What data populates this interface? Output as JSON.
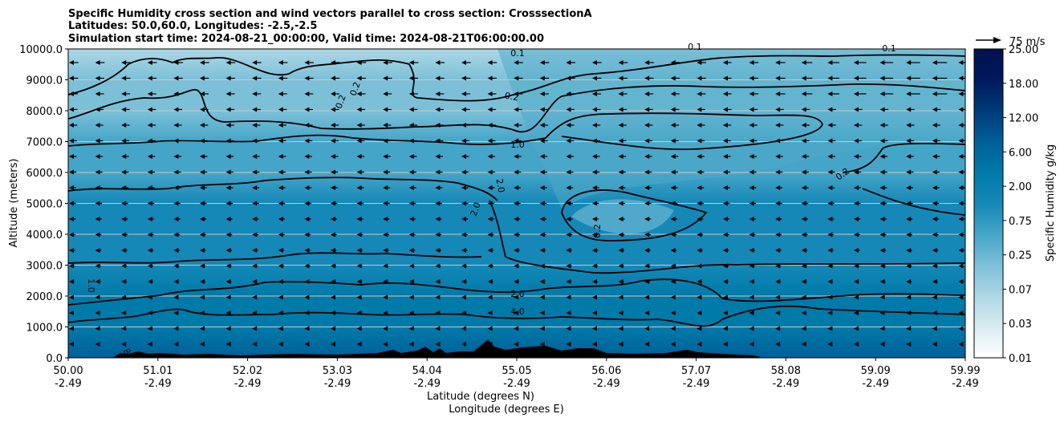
{
  "chart_data": {
    "type": "heatmap",
    "title_lines": [
      "Specific Humidity cross section and wind vectors parallel to cross section: CrosssectionA",
      "Latitudes: 50.0,60.0, Longitudes: -2.5,-2.5",
      "Simulation start time: 2024-08-21_00:00:00, Valid time: 2024-08-21T06:00:00.00"
    ],
    "xlabel_lat": "Latitude (degrees N)",
    "xlabel_lon": "Longitude (degrees E)",
    "ylabel": "Altitude (meters)",
    "x_ticks_lat": [
      "50.00",
      "51.01",
      "52.02",
      "53.03",
      "54.04",
      "55.05",
      "56.06",
      "57.07",
      "58.08",
      "59.09",
      "59.99"
    ],
    "x_ticks_lon": [
      "-2.49",
      "-2.49",
      "-2.49",
      "-2.49",
      "-2.49",
      "-2.49",
      "-2.49",
      "-2.49",
      "-2.49",
      "-2.49",
      "-2.49"
    ],
    "y_ticks": [
      "0.0",
      "1000.0",
      "2000.0",
      "3000.0",
      "4000.0",
      "5000.0",
      "6000.0",
      "7000.0",
      "8000.0",
      "9000.0",
      "10000.0"
    ],
    "ylim": [
      0,
      10000
    ],
    "xlim": [
      50.0,
      59.99
    ],
    "grid": "horizontal",
    "colorbar": {
      "label": "Specific Humidity g/kg",
      "tick_labels": [
        "0.01",
        "0.03",
        "0.07",
        "0.25",
        "0.75",
        "2.00",
        "6.00",
        "12.00",
        "18.00",
        "25.00"
      ],
      "colormap_stops": [
        "#ffffff",
        "#d9ecf2",
        "#aed7e5",
        "#7cc0d8",
        "#45a5c8",
        "#1588b7",
        "#007aa8",
        "#005f99",
        "#003a7a",
        "#001a5c",
        "#00124f"
      ]
    },
    "quiver_key": "75 m/s",
    "contour_labels": [
      "0.1",
      "0.2",
      "0.2",
      "0.2",
      "1.0",
      "2.0",
      "2.0",
      "0.2",
      "0.2",
      "0.1",
      "0.1",
      "1.0",
      "2.0",
      "4.0",
      "8"
    ],
    "contour_levels": [
      0.1,
      0.2,
      1.0,
      2.0,
      4.0,
      8.0
    ],
    "terrain_note": "",
    "humidity_bands": [
      {
        "z": 0,
        "q": 12.0
      },
      {
        "z": 1000,
        "q": 8.0
      },
      {
        "z": 2000,
        "q": 5.0
      },
      {
        "z": 3000,
        "q": 3.0
      },
      {
        "z": 4000,
        "q": 2.5
      },
      {
        "z": 5000,
        "q": 2.0
      },
      {
        "z": 6000,
        "q": 1.3
      },
      {
        "z": 7000,
        "q": 0.9
      },
      {
        "z": 8000,
        "q": 0.4
      },
      {
        "z": 9000,
        "q": 0.2
      },
      {
        "z": 10000,
        "q": 0.12
      }
    ]
  }
}
